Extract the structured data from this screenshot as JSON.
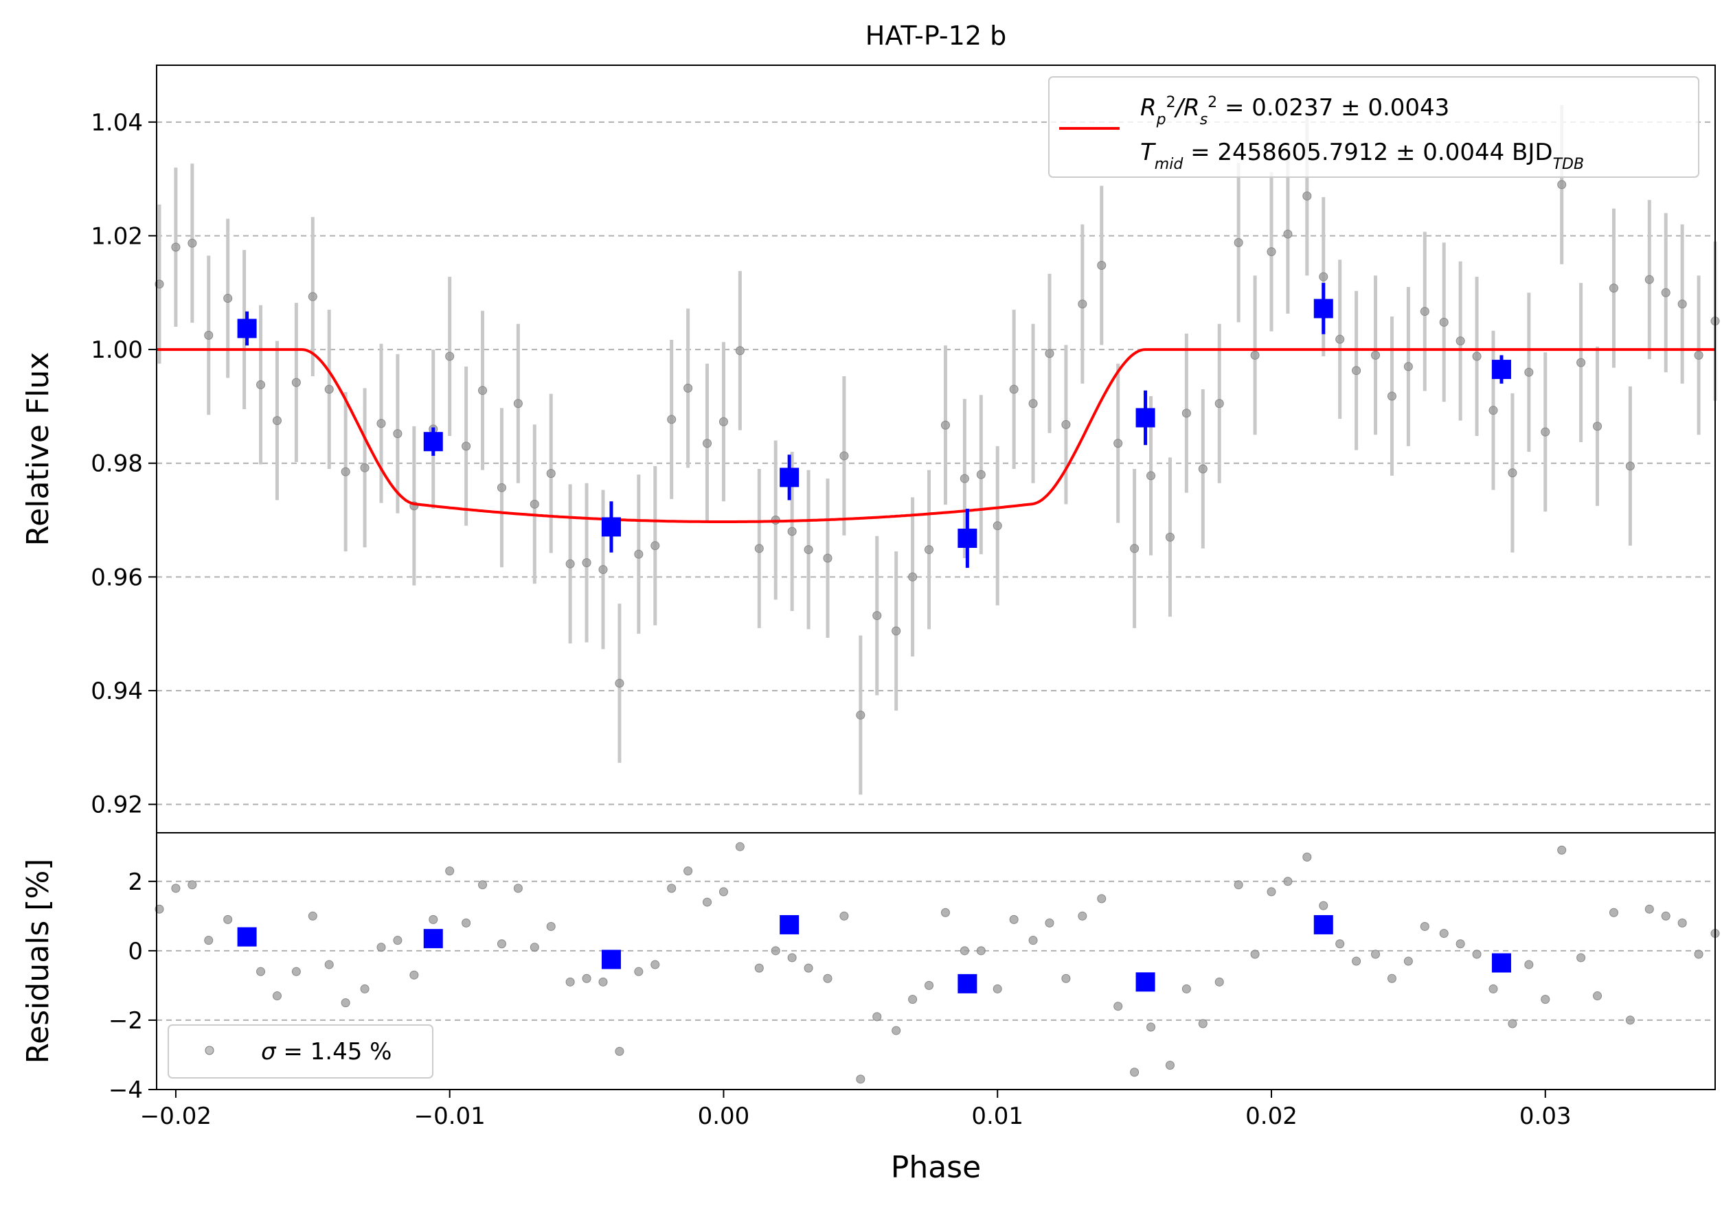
{
  "chart_data": [
    {
      "type": "scatter",
      "title": "HAT-P-12 b",
      "xlabel": "",
      "ylabel": "Relative Flux",
      "xlim": [
        -0.0207,
        0.0362
      ],
      "ylim": [
        0.915,
        1.05
      ],
      "grid": "horizontal dashed",
      "x_ticks": [
        -0.02,
        -0.01,
        0.0,
        0.01,
        0.02,
        0.03
      ],
      "y_ticks": [
        0.92,
        0.94,
        0.96,
        0.98,
        1.0,
        1.02,
        1.04
      ],
      "y_tick_labels": [
        "0.92",
        "0.94",
        "0.96",
        "0.98",
        "1.00",
        "1.02",
        "1.04"
      ],
      "legend_position": "top-right",
      "legend": {
        "line1_prefix": "R",
        "line1_sub1": "p",
        "line1_sup1": "2",
        "line1_slash": "/R",
        "line1_sub2": "s",
        "line1_sup2": "2",
        "line1_value": " = 0.0237 ± 0.0043",
        "line2_prefix": "T",
        "line2_sub": "mid",
        "line2_value": " = 2458605.7912 ± 0.0044 BJD",
        "line2_unit_sub": "TDB",
        "line_color": "#ff0000"
      },
      "series": [
        {
          "kind": "raw",
          "color": "#999999",
          "x": [
            -0.0206,
            -0.02,
            -0.0194,
            -0.0188,
            -0.0181,
            -0.0175,
            -0.0169,
            -0.0163,
            -0.0156,
            -0.015,
            -0.0144,
            -0.0138,
            -0.0131,
            -0.0125,
            -0.0119,
            -0.0113,
            -0.0106,
            -0.01,
            -0.0094,
            -0.0088,
            -0.0081,
            -0.0075,
            -0.0069,
            -0.0063,
            -0.0056,
            -0.005,
            -0.0044,
            -0.0038,
            -0.0031,
            -0.0025,
            -0.0019,
            -0.0013,
            -0.0006,
            0.0,
            0.0006,
            0.0013,
            0.0019,
            0.0025,
            0.0031,
            0.0038,
            0.0044,
            0.005,
            0.0056,
            0.0063,
            0.0069,
            0.0075,
            0.0081,
            0.0088,
            0.0094,
            0.01,
            0.0106,
            0.0113,
            0.0119,
            0.0125,
            0.0131,
            0.0138,
            0.0144,
            0.015,
            0.0156,
            0.0163,
            0.0169,
            0.0175,
            0.0181,
            0.0188,
            0.0194,
            0.02,
            0.0206,
            0.0213,
            0.0219,
            0.0225,
            0.0231,
            0.0238,
            0.0244,
            0.025,
            0.0256,
            0.0263,
            0.0269,
            0.0275,
            0.0281,
            0.0288,
            0.0294,
            0.03,
            0.0306,
            0.0313,
            0.0319,
            0.0325,
            0.0331,
            0.0338,
            0.0344,
            0.035,
            0.0356,
            0.0362
          ],
          "y": [
            1.0115,
            1.018,
            1.0187,
            1.0025,
            1.009,
            1.0035,
            0.9938,
            0.9875,
            0.9942,
            1.0093,
            0.993,
            0.9785,
            0.9792,
            0.987,
            0.9852,
            0.9725,
            0.986,
            0.9988,
            0.983,
            0.9928,
            0.9757,
            0.9905,
            0.9728,
            0.9782,
            0.9623,
            0.9625,
            0.9613,
            0.9413,
            0.964,
            0.9655,
            0.9877,
            0.9932,
            0.9835,
            0.9873,
            0.9998,
            0.965,
            0.97,
            0.968,
            0.9648,
            0.9633,
            0.9813,
            0.9357,
            0.9532,
            0.9505,
            0.96,
            0.9648,
            0.9867,
            0.9773,
            0.978,
            0.969,
            0.993,
            0.9905,
            0.9993,
            0.9868,
            1.008,
            1.0148,
            0.9835,
            0.965,
            0.9778,
            0.967,
            0.9888,
            0.979,
            0.9905,
            1.0188,
            0.999,
            1.0172,
            1.0203,
            1.027,
            1.0128,
            1.0018,
            0.9963,
            0.999,
            0.9918,
            0.997,
            1.0067,
            1.0048,
            1.0015,
            0.9988,
            0.9893,
            0.9783,
            0.996,
            0.9855,
            1.029,
            0.9977,
            0.9865,
            1.0108,
            0.9795,
            1.0123,
            1.01,
            1.008,
            0.999,
            1.005
          ],
          "yerr": [
            0.014,
            0.014,
            0.014,
            0.014,
            0.014,
            0.014,
            0.014,
            0.014,
            0.014,
            0.014,
            0.014,
            0.014,
            0.014,
            0.014,
            0.014,
            0.014,
            0.014,
            0.014,
            0.014,
            0.014,
            0.014,
            0.014,
            0.014,
            0.014,
            0.014,
            0.014,
            0.014,
            0.014,
            0.014,
            0.014,
            0.014,
            0.014,
            0.014,
            0.014,
            0.014,
            0.014,
            0.014,
            0.014,
            0.014,
            0.014,
            0.014,
            0.014,
            0.014,
            0.014,
            0.014,
            0.014,
            0.014,
            0.014,
            0.014,
            0.014,
            0.014,
            0.014,
            0.014,
            0.014,
            0.014,
            0.014,
            0.014,
            0.014,
            0.014,
            0.014,
            0.014,
            0.014,
            0.014,
            0.014,
            0.014,
            0.014,
            0.014,
            0.014,
            0.014,
            0.014,
            0.014,
            0.014,
            0.014,
            0.014,
            0.014,
            0.014,
            0.014,
            0.014,
            0.014,
            0.014,
            0.014,
            0.014,
            0.014,
            0.014,
            0.014,
            0.014,
            0.014,
            0.014,
            0.014,
            0.014,
            0.014,
            0.014
          ]
        },
        {
          "kind": "binned",
          "color": "#0000ff",
          "x": [
            -0.0174,
            -0.0106,
            -0.0041,
            0.0024,
            0.0089,
            0.0154,
            0.0219,
            0.0284
          ],
          "y": [
            1.0037,
            0.9838,
            0.9688,
            0.9775,
            0.9668,
            0.988,
            1.0072,
            0.9965
          ],
          "yerr": [
            0.003,
            0.0025,
            0.0045,
            0.004,
            0.0052,
            0.0048,
            0.0045,
            0.0025
          ]
        },
        {
          "kind": "model",
          "color": "#ff0000",
          "depth": 0.0303,
          "t1": -0.0154,
          "t2": -0.0112,
          "t3": 0.0112,
          "t4": 0.0154,
          "x_range": [
            -0.0207,
            0.0362
          ]
        }
      ]
    },
    {
      "type": "scatter",
      "title": "",
      "xlabel": "Phase",
      "ylabel": "Residuals [%]",
      "xlim": [
        -0.0207,
        0.0362
      ],
      "ylim": [
        -4,
        3.4
      ],
      "grid": "horizontal dashed",
      "x_ticks": [
        -0.02,
        -0.01,
        0.0,
        0.01,
        0.02,
        0.03
      ],
      "x_tick_labels": [
        "−0.02",
        "−0.01",
        "0.00",
        "0.01",
        "0.02",
        "0.03"
      ],
      "y_ticks": [
        -4,
        -2,
        0,
        2
      ],
      "y_tick_labels": [
        "−4",
        "−2",
        "0",
        "2"
      ],
      "legend_position": "bottom-left",
      "legend": {
        "sigma_symbol": "σ",
        "sigma_text": " = 1.45 %"
      },
      "series": [
        {
          "kind": "raw",
          "color": "#999999",
          "x": [
            -0.0206,
            -0.02,
            -0.0194,
            -0.0188,
            -0.0181,
            -0.0175,
            -0.0169,
            -0.0163,
            -0.0156,
            -0.015,
            -0.0144,
            -0.0138,
            -0.0131,
            -0.0125,
            -0.0119,
            -0.0113,
            -0.0106,
            -0.01,
            -0.0094,
            -0.0088,
            -0.0081,
            -0.0075,
            -0.0069,
            -0.0063,
            -0.0056,
            -0.005,
            -0.0044,
            -0.0038,
            -0.0031,
            -0.0025,
            -0.0019,
            -0.0013,
            -0.0006,
            0.0,
            0.0006,
            0.0013,
            0.0019,
            0.0025,
            0.0031,
            0.0038,
            0.0044,
            0.005,
            0.0056,
            0.0063,
            0.0069,
            0.0075,
            0.0081,
            0.0088,
            0.0094,
            0.01,
            0.0106,
            0.0113,
            0.0119,
            0.0125,
            0.0131,
            0.0138,
            0.0144,
            0.015,
            0.0156,
            0.0163,
            0.0169,
            0.0175,
            0.0181,
            0.0188,
            0.0194,
            0.02,
            0.0206,
            0.0213,
            0.0219,
            0.0225,
            0.0231,
            0.0238,
            0.0244,
            0.025,
            0.0256,
            0.0263,
            0.0269,
            0.0275,
            0.0281,
            0.0288,
            0.0294,
            0.03,
            0.0306,
            0.0313,
            0.0319,
            0.0325,
            0.0331,
            0.0338,
            0.0344,
            0.035,
            0.0356,
            0.0362
          ],
          "y": [
            1.2,
            1.8,
            1.9,
            0.3,
            0.9,
            0.4,
            -0.6,
            -1.3,
            -0.6,
            1.0,
            -0.4,
            -1.5,
            -1.1,
            0.1,
            0.3,
            -0.7,
            0.9,
            2.3,
            0.8,
            1.9,
            0.2,
            1.8,
            0.1,
            0.7,
            -0.9,
            -0.8,
            -0.9,
            -2.9,
            -0.6,
            -0.4,
            1.8,
            2.3,
            1.4,
            1.7,
            3.0,
            -0.5,
            0.0,
            -0.2,
            -0.5,
            -0.8,
            1.0,
            -3.7,
            -1.9,
            -2.3,
            -1.4,
            -1.0,
            1.1,
            0.0,
            0.0,
            -1.1,
            0.9,
            0.3,
            0.8,
            -0.8,
            1.0,
            1.5,
            -1.6,
            -3.5,
            -2.2,
            -3.3,
            -1.1,
            -2.1,
            -0.9,
            1.9,
            -0.1,
            1.7,
            2.0,
            2.7,
            1.3,
            0.2,
            -0.3,
            -0.1,
            -0.8,
            -0.3,
            0.7,
            0.5,
            0.2,
            -0.1,
            -1.1,
            -2.1,
            -0.4,
            -1.4,
            2.9,
            -0.2,
            -1.3,
            1.1,
            -2.0,
            1.2,
            1.0,
            0.8,
            -0.1,
            0.5
          ]
        },
        {
          "kind": "binned",
          "color": "#0000ff",
          "x": [
            -0.0174,
            -0.0106,
            -0.0041,
            0.0024,
            0.0089,
            0.0154,
            0.0219,
            0.0284
          ],
          "y": [
            0.4,
            0.35,
            -0.25,
            0.75,
            -0.95,
            -0.9,
            0.75,
            -0.35
          ]
        }
      ]
    }
  ]
}
